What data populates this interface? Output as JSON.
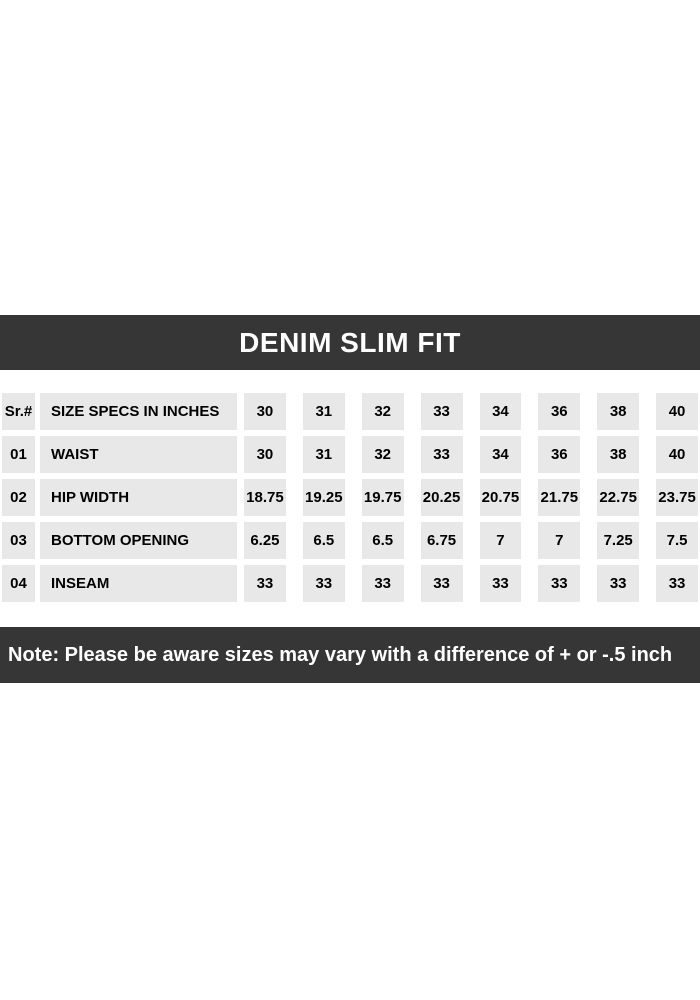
{
  "header": {
    "title": "DENIM SLIM FIT"
  },
  "note": {
    "text": "Note: Please be aware sizes may vary with a difference of + or -.5 inch"
  },
  "colors": {
    "bar_background": "#363636",
    "bar_text": "#ffffff",
    "cell_background": "#e8e8e8",
    "cell_text": "#000000",
    "page_background": "#ffffff"
  },
  "chart_data": {
    "type": "table",
    "title": "DENIM SLIM FIT",
    "note": "Note: Please be aware sizes may vary with a difference of + or -.5 inch",
    "header_row": {
      "sr": "Sr.#",
      "spec_label": "SIZE SPECS IN INCHES",
      "sizes": [
        "30",
        "31",
        "32",
        "33",
        "34",
        "36",
        "38",
        "40"
      ]
    },
    "rows": [
      {
        "sr": "01",
        "label": "WAIST",
        "values": [
          "30",
          "31",
          "32",
          "33",
          "34",
          "36",
          "38",
          "40"
        ]
      },
      {
        "sr": "02",
        "label": "HIP WIDTH",
        "values": [
          "18.75",
          "19.25",
          "19.75",
          "20.25",
          "20.75",
          "21.75",
          "22.75",
          "23.75"
        ]
      },
      {
        "sr": "03",
        "label": "BOTTOM OPENING",
        "values": [
          "6.25",
          "6.5",
          "6.5",
          "6.75",
          "7",
          "7",
          "7.25",
          "7.5"
        ]
      },
      {
        "sr": "04",
        "label": "INSEAM",
        "values": [
          "33",
          "33",
          "33",
          "33",
          "33",
          "33",
          "33",
          "33"
        ]
      }
    ]
  }
}
